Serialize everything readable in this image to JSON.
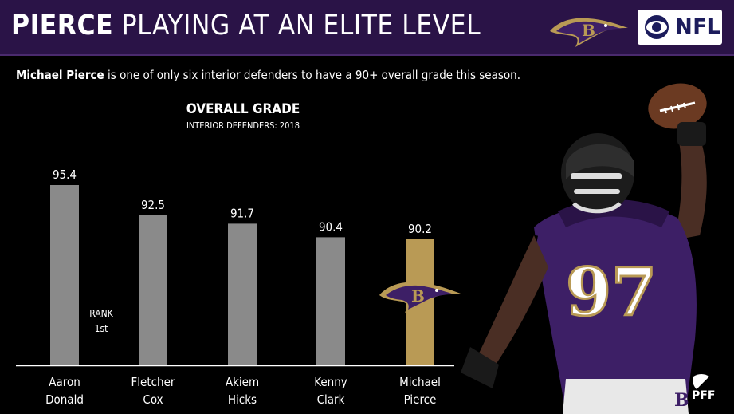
{
  "header": {
    "title_bold": "PIERCE",
    "title_rest": "PLAYING AT AN ELITE LEVEL",
    "network_label": "NFL"
  },
  "subtitle": {
    "name": "Michael Pierce",
    "rest": " is one of only six interior defenders to have a 90+ overall grade this season."
  },
  "rank": {
    "label": "RANK",
    "value": "1st"
  },
  "colors": {
    "header_bg": "#2a1347",
    "bar_default": "#8a8a8a",
    "bar_highlight": "#b99a55",
    "ravens_purple": "#3d1f66"
  },
  "chart_data": {
    "type": "bar",
    "title": "OVERALL GRADE",
    "subtitle": "INTERIOR DEFENDERS: 2018",
    "categories": [
      [
        "Aaron",
        "Donald"
      ],
      [
        "Fletcher",
        "Cox"
      ],
      [
        "Akiem",
        "Hicks"
      ],
      [
        "Kenny",
        "Clark"
      ],
      [
        "Michael",
        "Pierce"
      ]
    ],
    "values": [
      95.4,
      92.5,
      91.7,
      90.4,
      90.2
    ],
    "value_labels": [
      "95.4",
      "92.5",
      "91.7",
      "90.4",
      "90.2"
    ],
    "highlight_index": 4,
    "grid": false,
    "legend": "none"
  },
  "icons": {
    "team_logo": "ravens-logo-icon",
    "network_logo": "cbs-eye-icon",
    "watermark": "pff-logo-icon"
  }
}
